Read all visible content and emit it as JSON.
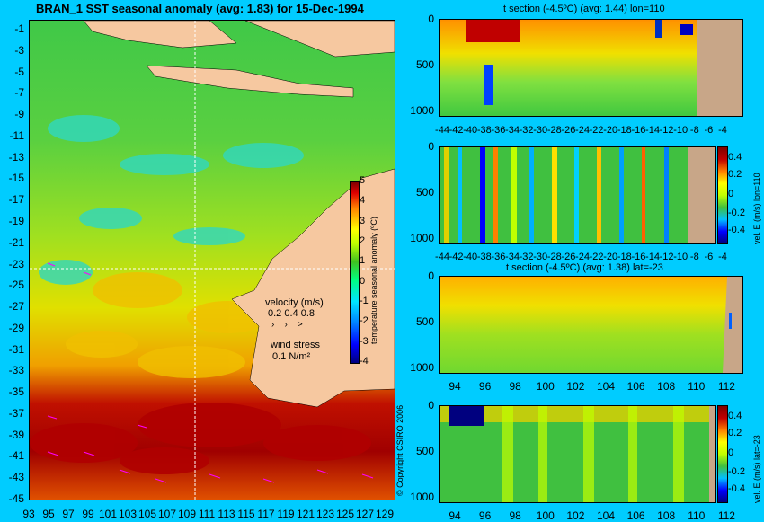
{
  "map": {
    "title": "BRAN_1  SST seasonal anomaly (avg: 1.83) for 15-Dec-1994",
    "lat_ticks": [
      "-1",
      "-3",
      "-5",
      "-7",
      "-9",
      "-11",
      "-13",
      "-15",
      "-17",
      "-19",
      "-21",
      "-23",
      "-25",
      "-27",
      "-29",
      "-31",
      "-33",
      "-35",
      "-37",
      "-39",
      "-41",
      "-43",
      "-45"
    ],
    "lon_ticks": [
      "93",
      "95",
      "97",
      "99",
      "101",
      "103",
      "105",
      "107",
      "109",
      "111",
      "113",
      "115",
      "117",
      "119",
      "121",
      "123",
      "125",
      "127",
      "129"
    ],
    "colorbar_ticks": [
      "5",
      "4",
      "3",
      "2",
      "1",
      "0",
      "-1",
      "-2",
      "-3",
      "-4"
    ],
    "colorbar_label": "temperature seasonal anomaly (ºC)",
    "velocity_label": "velocity (m/s)",
    "velocity_scale": "0.2 0.4 0.8",
    "wind_label": "wind stress",
    "wind_scale": "0.1 N/m²",
    "copyright": "© Copyright CSIRO 2006"
  },
  "panels": {
    "p1": {
      "title": "t section (-4.5ºC) (avg: 1.44) lon=110",
      "x_ticks": [
        "-44",
        "-42",
        "-40",
        "-38",
        "-36",
        "-34",
        "-32",
        "-30",
        "-28",
        "-26",
        "-24",
        "-22",
        "-20",
        "-18",
        "-16",
        "-14",
        "-12",
        "-10",
        "-8",
        "-6",
        "-4"
      ],
      "y_ticks": [
        "0",
        "500",
        "1000"
      ]
    },
    "p2": {
      "x_ticks": [
        "-44",
        "-42",
        "-40",
        "-38",
        "-36",
        "-34",
        "-32",
        "-30",
        "-28",
        "-26",
        "-24",
        "-22",
        "-20",
        "-18",
        "-16",
        "-14",
        "-12",
        "-10",
        "-8",
        "-6",
        "-4"
      ],
      "y_ticks": [
        "0",
        "500",
        "1000"
      ],
      "cbar_ticks": [
        "0.4",
        "0.2",
        "0",
        "-0.2",
        "-0.4"
      ],
      "cbar_label": "vel. E (m/s) lon=110"
    },
    "p3": {
      "title": "t section (-4.5ºC) (avg: 1.38) lat=-23",
      "x_ticks": [
        "94",
        "96",
        "98",
        "100",
        "102",
        "104",
        "106",
        "108",
        "110",
        "112"
      ],
      "y_ticks": [
        "0",
        "500",
        "1000"
      ]
    },
    "p4": {
      "x_ticks": [
        "94",
        "96",
        "98",
        "100",
        "102",
        "104",
        "106",
        "108",
        "110",
        "112"
      ],
      "y_ticks": [
        "0",
        "500",
        "1000"
      ],
      "cbar_ticks": [
        "0.4",
        "0.2",
        "0",
        "-0.2",
        "-0.4"
      ],
      "cbar_label": "vel. E (m/s) lat=-23"
    }
  },
  "chart_data": [
    {
      "type": "heatmap",
      "title": "BRAN_1  SST seasonal anomaly (avg: 1.83) for 15-Dec-1994",
      "xlim": [
        93,
        130
      ],
      "ylim": [
        -45,
        0
      ],
      "colorbar_range": [
        -4,
        5
      ],
      "colorbar_label": "temperature seasonal anomaly (ºC)"
    },
    {
      "type": "heatmap",
      "title": "t section (-4.5ºC) (avg: 1.44) lon=110",
      "xlim": [
        -45,
        -3
      ],
      "ylim": [
        1050,
        0
      ]
    },
    {
      "type": "heatmap",
      "xlim": [
        -45,
        -3
      ],
      "ylim": [
        1050,
        0
      ],
      "colorbar_range": [
        -0.4,
        0.4
      ],
      "colorbar_label": "vel. E (m/s) lon=110"
    },
    {
      "type": "heatmap",
      "title": "t section (-4.5ºC) (avg: 1.38) lat=-23",
      "xlim": [
        93,
        114
      ],
      "ylim": [
        1050,
        0
      ]
    },
    {
      "type": "heatmap",
      "xlim": [
        93,
        114
      ],
      "ylim": [
        1050,
        0
      ],
      "colorbar_range": [
        -0.4,
        0.4
      ],
      "colorbar_label": "vel. E (m/s) lat=-23"
    }
  ]
}
